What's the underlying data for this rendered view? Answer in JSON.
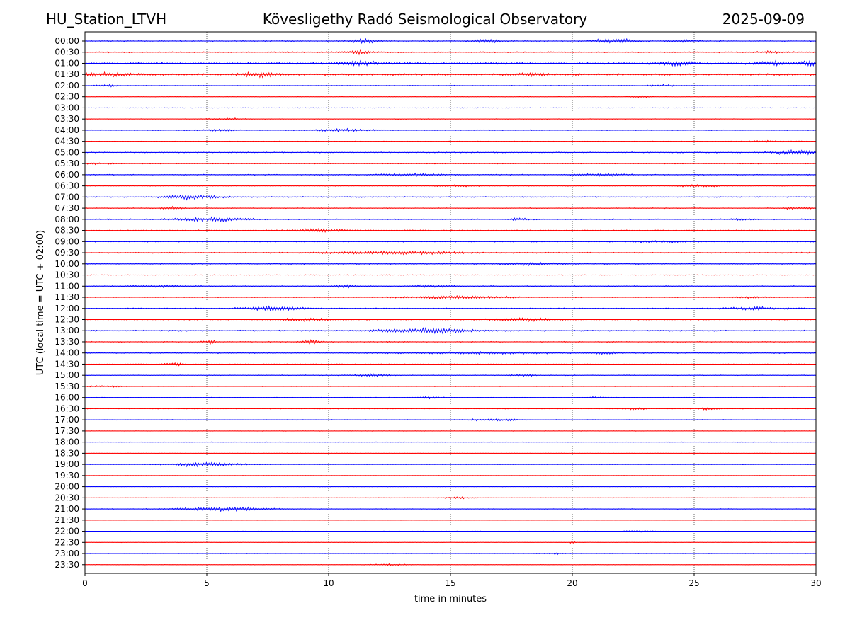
{
  "header": {
    "station": "HU_Station_LTVH",
    "observatory": "Kövesligethy Radó Seismological Observatory",
    "date": "2025-09-09"
  },
  "chart_data": {
    "type": "seismogram",
    "xlabel": "time in minutes",
    "ylabel": "UTC (local time = UTC + 02:00)",
    "xlim": [
      0,
      30
    ],
    "x_ticks": [
      0,
      5,
      10,
      15,
      20,
      25,
      30
    ],
    "grid": "vertical dotted lines at x ticks",
    "trace_colors": [
      "#0000ff",
      "#ff0000"
    ],
    "rows": [
      {
        "label": "00:00",
        "noise": 0.55,
        "events": [
          [
            11.5,
            2.5,
            0.4
          ],
          [
            16.5,
            2.2,
            0.4
          ],
          [
            21.4,
            2.3,
            0.5
          ],
          [
            22.2,
            2.0,
            0.4
          ],
          [
            24.5,
            1.5,
            0.5
          ]
        ]
      },
      {
        "label": "00:30",
        "noise": 0.65,
        "events": [
          [
            11.2,
            2.4,
            0.4
          ],
          [
            28.2,
            1.2,
            0.5
          ]
        ]
      },
      {
        "label": "01:00",
        "noise": 1.0,
        "events": [
          [
            11.2,
            2.3,
            0.6
          ],
          [
            24.3,
            2.6,
            0.5
          ],
          [
            28.2,
            2.0,
            0.6
          ],
          [
            29.8,
            2.6,
            0.4
          ]
        ]
      },
      {
        "label": "01:30",
        "noise": 1.0,
        "events": [
          [
            0.8,
            2.0,
            1.0
          ],
          [
            7.1,
            3.0,
            0.5
          ],
          [
            18.4,
            1.6,
            0.6
          ]
        ]
      },
      {
        "label": "02:00",
        "noise": 0.45,
        "events": [
          [
            0.9,
            1.5,
            0.3
          ],
          [
            23.8,
            1.0,
            0.5
          ]
        ]
      },
      {
        "label": "02:30",
        "noise": 0.3,
        "events": [
          [
            22.8,
            1.3,
            0.3
          ]
        ]
      },
      {
        "label": "03:00",
        "noise": 0.3,
        "events": []
      },
      {
        "label": "03:30",
        "noise": 0.35,
        "events": [
          [
            5.8,
            1.0,
            0.5
          ]
        ]
      },
      {
        "label": "04:00",
        "noise": 0.5,
        "events": [
          [
            10.6,
            1.5,
            0.8
          ],
          [
            5.5,
            1.0,
            0.5
          ]
        ]
      },
      {
        "label": "04:30",
        "noise": 0.35,
        "events": [
          [
            28.0,
            1.0,
            0.7
          ]
        ]
      },
      {
        "label": "05:00",
        "noise": 0.55,
        "events": [
          [
            29.2,
            3.0,
            0.7
          ]
        ]
      },
      {
        "label": "05:30",
        "noise": 0.5,
        "events": [
          [
            0.4,
            0.9,
            0.6
          ]
        ]
      },
      {
        "label": "06:00",
        "noise": 0.55,
        "events": [
          [
            13.5,
            1.3,
            1.0
          ],
          [
            21.2,
            1.4,
            0.8
          ]
        ]
      },
      {
        "label": "06:30",
        "noise": 0.45,
        "events": [
          [
            25.3,
            1.5,
            0.6
          ],
          [
            15.2,
            1.0,
            0.5
          ]
        ]
      },
      {
        "label": "07:00",
        "noise": 0.55,
        "events": [
          [
            4.4,
            2.8,
            0.8
          ]
        ]
      },
      {
        "label": "07:30",
        "noise": 0.45,
        "events": [
          [
            3.6,
            2.0,
            0.3
          ],
          [
            29.2,
            1.2,
            0.5
          ]
        ]
      },
      {
        "label": "08:00",
        "noise": 0.6,
        "events": [
          [
            5.2,
            2.3,
            1.0
          ],
          [
            17.8,
            2.2,
            0.2
          ],
          [
            27.0,
            1.0,
            0.4
          ]
        ]
      },
      {
        "label": "08:30",
        "noise": 0.6,
        "events": [
          [
            9.8,
            1.8,
            0.8
          ]
        ]
      },
      {
        "label": "09:00",
        "noise": 0.55,
        "events": [
          [
            23.5,
            1.2,
            0.8
          ]
        ]
      },
      {
        "label": "09:30",
        "noise": 0.7,
        "events": [
          [
            12.0,
            1.4,
            1.5
          ],
          [
            14.3,
            1.3,
            0.8
          ]
        ]
      },
      {
        "label": "10:00",
        "noise": 0.6,
        "events": [
          [
            18.4,
            1.5,
            0.8
          ]
        ]
      },
      {
        "label": "10:30",
        "noise": 0.35,
        "events": []
      },
      {
        "label": "11:00",
        "noise": 0.6,
        "events": [
          [
            3.0,
            1.6,
            0.8
          ],
          [
            10.8,
            1.3,
            0.5
          ],
          [
            14.3,
            1.4,
            0.6
          ]
        ]
      },
      {
        "label": "11:30",
        "noise": 0.5,
        "events": [
          [
            15.3,
            1.8,
            1.5
          ],
          [
            27.3,
            1.2,
            0.5
          ]
        ]
      },
      {
        "label": "12:00",
        "noise": 0.6,
        "events": [
          [
            7.7,
            2.5,
            0.9
          ],
          [
            27.5,
            1.8,
            0.9
          ]
        ]
      },
      {
        "label": "12:30",
        "noise": 0.55,
        "events": [
          [
            9.0,
            1.8,
            0.8
          ],
          [
            18.0,
            2.0,
            0.9
          ]
        ]
      },
      {
        "label": "13:00",
        "noise": 0.65,
        "events": [
          [
            14.6,
            2.8,
            1.0
          ],
          [
            12.5,
            1.3,
            0.8
          ]
        ]
      },
      {
        "label": "13:30",
        "noise": 0.5,
        "events": [
          [
            5.1,
            2.2,
            0.2
          ],
          [
            9.3,
            2.0,
            0.3
          ]
        ]
      },
      {
        "label": "14:00",
        "noise": 0.6,
        "events": [
          [
            16.5,
            1.0,
            2.5
          ],
          [
            21.4,
            1.5,
            0.3
          ]
        ]
      },
      {
        "label": "14:30",
        "noise": 0.35,
        "events": [
          [
            3.7,
            1.8,
            0.3
          ]
        ]
      },
      {
        "label": "15:00",
        "noise": 0.4,
        "events": [
          [
            11.7,
            1.3,
            0.5
          ],
          [
            18.0,
            1.0,
            0.4
          ]
        ]
      },
      {
        "label": "15:30",
        "noise": 0.35,
        "events": [
          [
            0.8,
            0.8,
            0.6
          ]
        ]
      },
      {
        "label": "16:00",
        "noise": 0.35,
        "events": [
          [
            14.0,
            1.3,
            0.4
          ],
          [
            21.0,
            1.0,
            0.3
          ]
        ]
      },
      {
        "label": "16:30",
        "noise": 0.35,
        "events": [
          [
            22.6,
            1.5,
            0.3
          ],
          [
            25.5,
            1.0,
            0.4
          ]
        ]
      },
      {
        "label": "17:00",
        "noise": 0.4,
        "events": [
          [
            17.3,
            1.3,
            0.3
          ],
          [
            16.3,
            1.0,
            0.5
          ]
        ]
      },
      {
        "label": "17:30",
        "noise": 0.3,
        "events": []
      },
      {
        "label": "18:00",
        "noise": 0.3,
        "events": []
      },
      {
        "label": "18:30",
        "noise": 0.25,
        "events": []
      },
      {
        "label": "19:00",
        "noise": 0.3,
        "events": [
          [
            4.9,
            2.4,
            1.1
          ]
        ]
      },
      {
        "label": "19:30",
        "noise": 0.25,
        "events": []
      },
      {
        "label": "20:00",
        "noise": 0.25,
        "events": []
      },
      {
        "label": "20:30",
        "noise": 0.3,
        "events": [
          [
            15.3,
            1.0,
            0.4
          ]
        ]
      },
      {
        "label": "21:00",
        "noise": 0.35,
        "events": [
          [
            5.7,
            2.8,
            1.2
          ]
        ]
      },
      {
        "label": "21:30",
        "noise": 0.25,
        "events": []
      },
      {
        "label": "22:00",
        "noise": 0.25,
        "events": [
          [
            22.8,
            1.0,
            0.4
          ]
        ]
      },
      {
        "label": "22:30",
        "noise": 0.25,
        "events": [
          [
            20.0,
            1.2,
            0.1
          ]
        ]
      },
      {
        "label": "23:00",
        "noise": 0.25,
        "events": [
          [
            19.3,
            1.0,
            0.2
          ]
        ]
      },
      {
        "label": "23:30",
        "noise": 0.25,
        "events": [
          [
            12.5,
            1.0,
            0.5
          ]
        ]
      }
    ]
  }
}
